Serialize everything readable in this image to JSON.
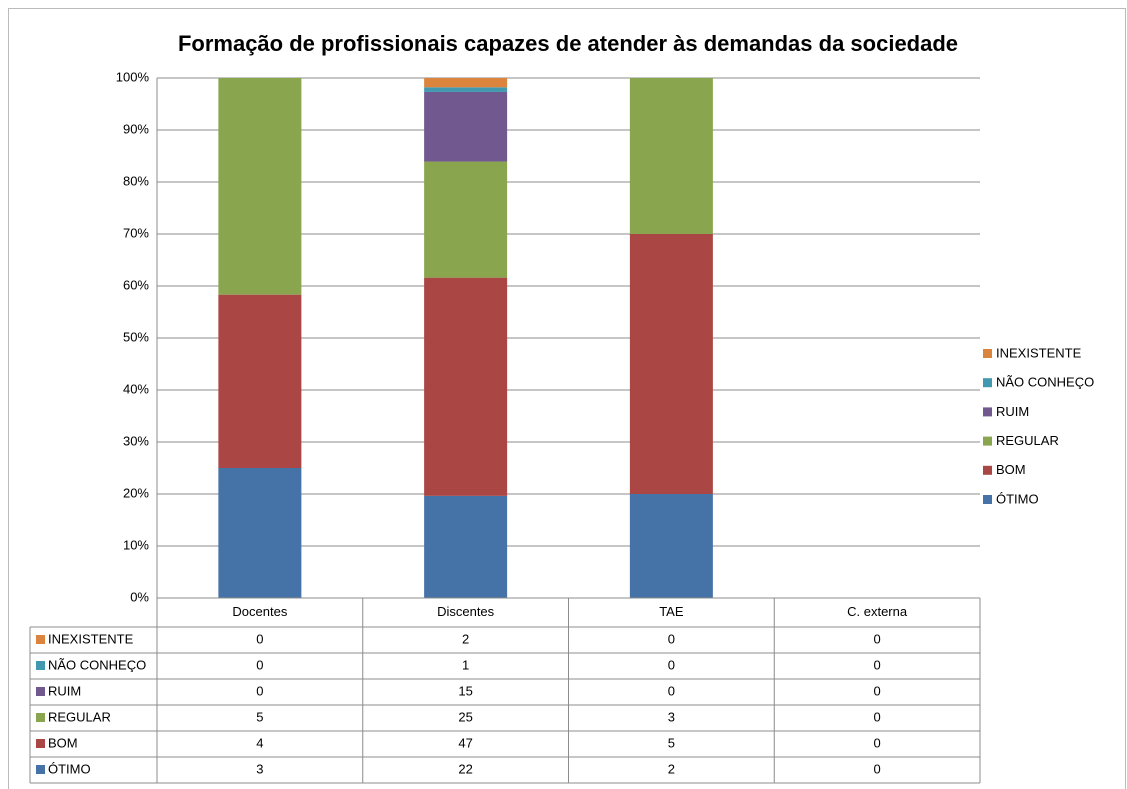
{
  "chart_data": {
    "type": "bar",
    "stacked_percent": true,
    "title": "Formação de profissionais capazes de atender às demandas da sociedade",
    "categories": [
      "Docentes",
      "Discentes",
      "TAE",
      "C. externa"
    ],
    "series": [
      {
        "name": "ÓTIMO",
        "color": "#4572a7",
        "values": [
          3,
          22,
          2,
          0
        ]
      },
      {
        "name": "BOM",
        "color": "#aa4643",
        "values": [
          4,
          47,
          5,
          0
        ]
      },
      {
        "name": "REGULAR",
        "color": "#89a54e",
        "values": [
          5,
          25,
          3,
          0
        ]
      },
      {
        "name": "RUIM",
        "color": "#71588f",
        "values": [
          0,
          15,
          0,
          0
        ]
      },
      {
        "name": "NÃO CONHEÇO",
        "color": "#4198af",
        "values": [
          0,
          1,
          0,
          0
        ]
      },
      {
        "name": "INEXISTENTE",
        "color": "#db843d",
        "values": [
          0,
          2,
          0,
          0
        ]
      }
    ],
    "ylim": [
      0,
      100
    ],
    "yticks": [
      {
        "value": 0,
        "label": "0%"
      },
      {
        "value": 10,
        "label": "10%"
      },
      {
        "value": 20,
        "label": "20%"
      },
      {
        "value": 30,
        "label": "30%"
      },
      {
        "value": 40,
        "label": "40%"
      },
      {
        "value": 50,
        "label": "50%"
      },
      {
        "value": 60,
        "label": "60%"
      },
      {
        "value": 70,
        "label": "70%"
      },
      {
        "value": 80,
        "label": "80%"
      },
      {
        "value": 90,
        "label": "90%"
      },
      {
        "value": 100,
        "label": "100%"
      }
    ],
    "grid": true,
    "legend": "right",
    "data_table": true
  }
}
